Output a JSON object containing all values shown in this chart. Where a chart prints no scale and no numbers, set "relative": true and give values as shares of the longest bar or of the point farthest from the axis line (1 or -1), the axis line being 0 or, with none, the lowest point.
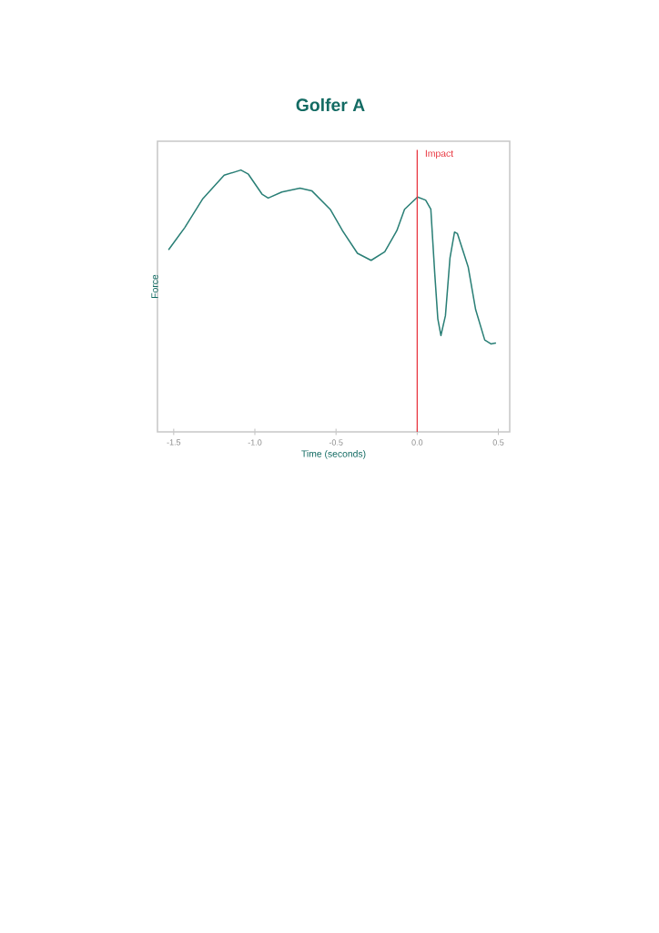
{
  "chart_data": {
    "type": "line",
    "title": "Golfer A",
    "xlabel": "Time (seconds)",
    "ylabel": "Force",
    "relative": true,
    "x": [
      -1.53,
      -1.432,
      -1.32,
      -1.189,
      -1.086,
      -1.04,
      -0.956,
      -0.918,
      -0.834,
      -0.722,
      -0.648,
      -0.536,
      -0.461,
      -0.368,
      -0.284,
      -0.2,
      -0.125,
      -0.078,
      0.002,
      0.052,
      0.084,
      0.108,
      0.127,
      0.146,
      0.174,
      0.202,
      0.23,
      0.248,
      0.314,
      0.36,
      0.416,
      0.454,
      0.482
    ],
    "series": [
      {
        "color": "#2a7f76",
        "values": [
          0.697,
          0.78,
          0.891,
          0.98,
          1.0,
          0.984,
          0.908,
          0.893,
          0.916,
          0.931,
          0.92,
          0.85,
          0.769,
          0.682,
          0.655,
          0.688,
          0.769,
          0.85,
          0.897,
          0.885,
          0.85,
          0.606,
          0.432,
          0.368,
          0.444,
          0.664,
          0.763,
          0.757,
          0.63,
          0.467,
          0.351,
          0.336,
          0.339
        ]
      }
    ],
    "xlim": [
      -1.6,
      0.57
    ],
    "xticks": [
      -1.5,
      {
        "value": -1.0,
        "label": "-1.0"
      },
      -0.5,
      {
        "value": 0.0,
        "label": "0.0"
      },
      0.5
    ],
    "ref_lines": [
      {
        "axis": "x",
        "value": 0.0,
        "label": "Impact",
        "color": "#e8323c"
      }
    ]
  }
}
